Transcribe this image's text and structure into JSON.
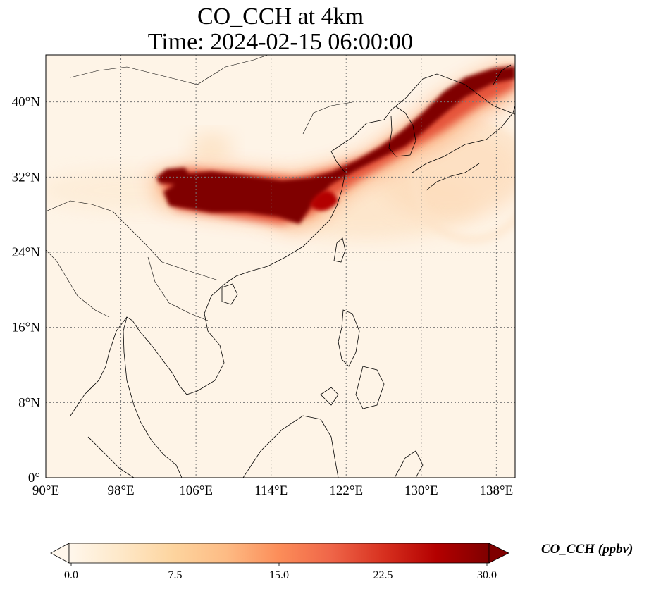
{
  "title": {
    "line1": "CO_CCH at 4km",
    "line2": "Time: 2024-02-15 06:00:00"
  },
  "map": {
    "lon_range": [
      90,
      140
    ],
    "lat_range": [
      0,
      45
    ],
    "lon_ticks": [
      {
        "value": 90,
        "label": "90°E"
      },
      {
        "value": 98,
        "label": "98°E"
      },
      {
        "value": 106,
        "label": "106°E"
      },
      {
        "value": 114,
        "label": "114°E"
      },
      {
        "value": 122,
        "label": "122°E"
      },
      {
        "value": 130,
        "label": "130°E"
      },
      {
        "value": 138,
        "label": "138°E"
      }
    ],
    "lat_ticks": [
      {
        "value": 0,
        "label": "0°"
      },
      {
        "value": 8,
        "label": "8°N"
      },
      {
        "value": 16,
        "label": "16°N"
      },
      {
        "value": 24,
        "label": "24°N"
      },
      {
        "value": 32,
        "label": "32°N"
      },
      {
        "value": 40,
        "label": "40°N"
      }
    ],
    "gridlines": true,
    "colormap": "OrRd",
    "plume_summary": "Concentration above 30 ppbv over central China (about 101°E–122°E, 27°N–33°N), extending northeast over Korea and the Sea of Japan to 140°E, 44°N"
  },
  "colorbar": {
    "label": "CO_CCH (ppbv)",
    "min": 0,
    "max": 30,
    "extend": "both",
    "ticks": [
      "0.0",
      "7.5",
      "15.0",
      "22.5",
      "30.0"
    ],
    "colors": [
      "#fff7ec",
      "#fee8c8",
      "#fdd49e",
      "#fdbb84",
      "#fc8d59",
      "#ef6548",
      "#d7301f",
      "#b30000",
      "#7f0000"
    ]
  }
}
